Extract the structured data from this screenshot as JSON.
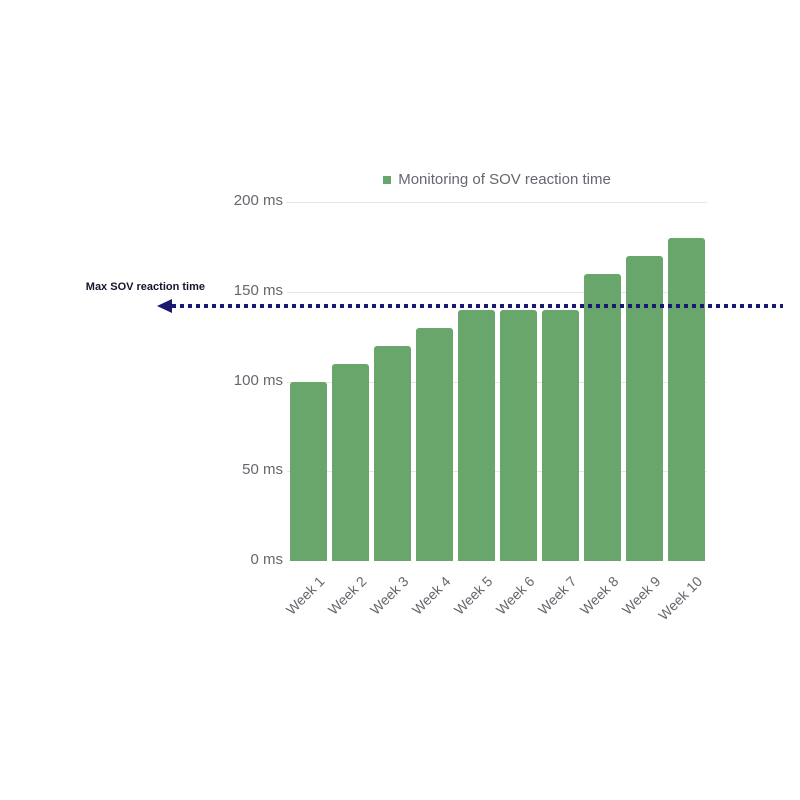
{
  "chart": {
    "legend_label": "Monitoring of SOV reaction time",
    "threshold_label": "Max SOV reaction time"
  },
  "chart_data": {
    "type": "bar",
    "title": "Monitoring of SOV reaction time",
    "categories": [
      "Week 1",
      "Week 2",
      "Week 3",
      "Week 4",
      "Week 5",
      "Week 6",
      "Week 7",
      "Week 8",
      "Week 9",
      "Week 10"
    ],
    "values": [
      100,
      110,
      120,
      130,
      140,
      140,
      140,
      160,
      170,
      180
    ],
    "unit": "ms",
    "xlabel": "",
    "ylabel": "",
    "ylim": [
      0,
      200
    ],
    "yticks": [
      0,
      50,
      100,
      150,
      200
    ],
    "ytick_suffix": " ms",
    "grid": true,
    "legend_position": "top-center",
    "threshold": {
      "label": "Max SOV reaction time",
      "value": 142,
      "style": "dotted",
      "arrow": "left"
    },
    "colors": {
      "bar": "#68a66c",
      "threshold": "#191970",
      "gridline": "#e6e6e6",
      "axis_text": "#66666e",
      "threshold_text": "#15152e",
      "background": "#ffffff"
    }
  }
}
